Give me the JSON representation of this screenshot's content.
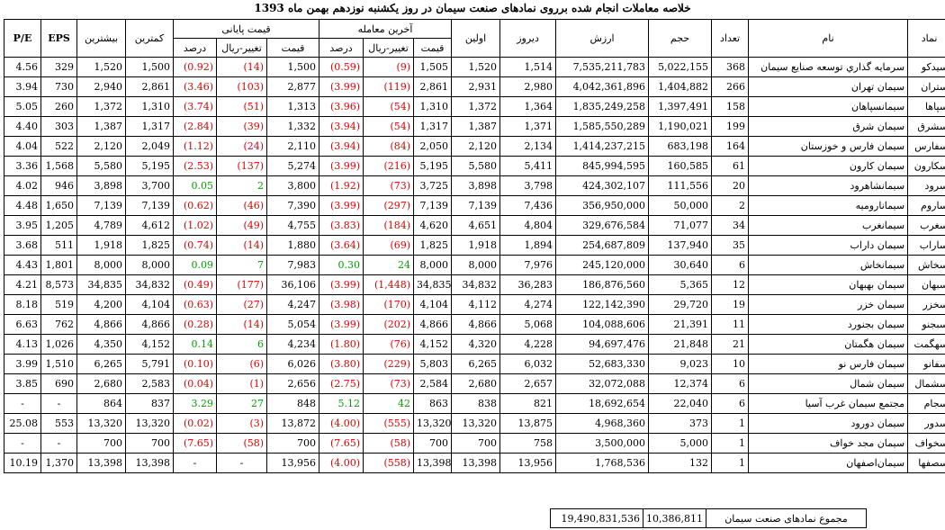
{
  "title": "خلاصه معاملات انجام شده برروی نمادهای صنعت سیمان در روز یکشنبه نوزدهم بهمن ماه 1393",
  "headers": {
    "namad": "نماد",
    "name": "نام",
    "count": "تعداد",
    "volume": "حجم",
    "value": "ارزش",
    "yesterday": "دیروز",
    "first": "اولین",
    "last_trade": "آخرین معامله",
    "closing": "قیمت پایانی",
    "price": "قیمت",
    "change": "تغییر-ریال",
    "percent": "درصد",
    "min": "کمترین",
    "max": "بیشترین",
    "eps": "EPS",
    "pe": "P/E"
  },
  "rows": [
    {
      "namad": "سیدکو",
      "name": "سرمايه گذاري توسعه صنايع سيمان",
      "count": "368",
      "volume": "5,022,155",
      "value": "7,535,211,783",
      "yesterday": "1,514",
      "first": "1,520",
      "lt_price": "1,505",
      "lt_change": "(9)",
      "lt_pct": "(0.59)",
      "lt_sign": "neg",
      "cl_price": "1,500",
      "cl_change": "(14)",
      "cl_pct": "(0.92)",
      "cl_sign": "neg",
      "min": "1,500",
      "max": "1,520",
      "eps": "329",
      "pe": "4.56"
    },
    {
      "namad": "ستران",
      "name": "سیمان تهران",
      "count": "266",
      "volume": "1,404,882",
      "value": "4,042,361,896",
      "yesterday": "2,980",
      "first": "2,931",
      "lt_price": "2,861",
      "lt_change": "(119)",
      "lt_pct": "(3.99)",
      "lt_sign": "neg",
      "cl_price": "2,877",
      "cl_change": "(103)",
      "cl_pct": "(3.46)",
      "cl_sign": "neg",
      "min": "2,861",
      "max": "2,940",
      "eps": "730",
      "pe": "3.94"
    },
    {
      "namad": "سپاها",
      "name": "سیمانسپاهان",
      "count": "158",
      "volume": "1,397,491",
      "value": "1,835,249,258",
      "yesterday": "1,364",
      "first": "1,372",
      "lt_price": "1,310",
      "lt_change": "(54)",
      "lt_pct": "(3.96)",
      "lt_sign": "neg",
      "cl_price": "1,313",
      "cl_change": "(51)",
      "cl_pct": "(3.74)",
      "cl_sign": "neg",
      "min": "1,310",
      "max": "1,372",
      "eps": "260",
      "pe": "5.05"
    },
    {
      "namad": "سشرق",
      "name": "سیمان شرق",
      "count": "199",
      "volume": "1,190,021",
      "value": "1,585,550,289",
      "yesterday": "1,371",
      "first": "1,387",
      "lt_price": "1,317",
      "lt_change": "(54)",
      "lt_pct": "(3.94)",
      "lt_sign": "neg",
      "cl_price": "1,332",
      "cl_change": "(39)",
      "cl_pct": "(2.84)",
      "cl_sign": "neg",
      "min": "1,317",
      "max": "1,387",
      "eps": "303",
      "pe": "4.40"
    },
    {
      "namad": "سفارس",
      "name": "سیمان فارس و خوزستان",
      "count": "164",
      "volume": "683,198",
      "value": "1,414,237,215",
      "yesterday": "2,134",
      "first": "2,120",
      "lt_price": "2,050",
      "lt_change": "(84)",
      "lt_pct": "(3.94)",
      "lt_sign": "neg",
      "cl_price": "2,110",
      "cl_change": "(24)",
      "cl_pct": "(1.12)",
      "cl_sign": "neg",
      "min": "2,049",
      "max": "2,120",
      "eps": "522",
      "pe": "4.04"
    },
    {
      "namad": "سکارون",
      "name": "سیمان کارون",
      "count": "61",
      "volume": "160,585",
      "value": "845,994,595",
      "yesterday": "5,411",
      "first": "5,580",
      "lt_price": "5,195",
      "lt_change": "(216)",
      "lt_pct": "(3.99)",
      "lt_sign": "neg",
      "cl_price": "5,274",
      "cl_change": "(137)",
      "cl_pct": "(2.53)",
      "cl_sign": "neg",
      "min": "5,195",
      "max": "5,580",
      "eps": "1,568",
      "pe": "3.36"
    },
    {
      "namad": "سرود",
      "name": "سیمانشاهرود",
      "count": "20",
      "volume": "111,556",
      "value": "424,302,107",
      "yesterday": "3,798",
      "first": "3,898",
      "lt_price": "3,725",
      "lt_change": "(73)",
      "lt_pct": "(1.92)",
      "lt_sign": "neg",
      "cl_price": "3,800",
      "cl_change": "2",
      "cl_pct": "0.05",
      "cl_sign": "pos",
      "min": "3,700",
      "max": "3,898",
      "eps": "946",
      "pe": "4.02"
    },
    {
      "namad": "ساروم",
      "name": "سیمانارومیه",
      "count": "2",
      "volume": "50,000",
      "value": "356,950,000",
      "yesterday": "7,436",
      "first": "7,139",
      "lt_price": "7,139",
      "lt_change": "(297)",
      "lt_pct": "(3.99)",
      "lt_sign": "neg",
      "cl_price": "7,390",
      "cl_change": "(46)",
      "cl_pct": "(0.62)",
      "cl_sign": "neg",
      "min": "7,139",
      "max": "7,139",
      "eps": "1,650",
      "pe": "4.48"
    },
    {
      "namad": "سغرب",
      "name": "سیمانغرب",
      "count": "34",
      "volume": "71,077",
      "value": "329,676,584",
      "yesterday": "4,804",
      "first": "4,651",
      "lt_price": "4,620",
      "lt_change": "(184)",
      "lt_pct": "(3.83)",
      "lt_sign": "neg",
      "cl_price": "4,755",
      "cl_change": "(49)",
      "cl_pct": "(1.02)",
      "cl_sign": "neg",
      "min": "4,612",
      "max": "4,789",
      "eps": "1,205",
      "pe": "3.95"
    },
    {
      "namad": "ساراب",
      "name": "سیمان داراب",
      "count": "35",
      "volume": "137,940",
      "value": "254,687,809",
      "yesterday": "1,894",
      "first": "1,918",
      "lt_price": "1,825",
      "lt_change": "(69)",
      "lt_pct": "(3.64)",
      "lt_sign": "neg",
      "cl_price": "1,880",
      "cl_change": "(14)",
      "cl_pct": "(0.74)",
      "cl_sign": "neg",
      "min": "1,825",
      "max": "1,918",
      "eps": "511",
      "pe": "3.68"
    },
    {
      "namad": "سخاش",
      "name": "سیمانخاش",
      "count": "6",
      "volume": "30,640",
      "value": "245,120,000",
      "yesterday": "7,976",
      "first": "8,000",
      "lt_price": "8,000",
      "lt_change": "24",
      "lt_pct": "0.30",
      "lt_sign": "pos",
      "cl_price": "7,983",
      "cl_change": "7",
      "cl_pct": "0.09",
      "cl_sign": "pos",
      "min": "8,000",
      "max": "8,000",
      "eps": "1,801",
      "pe": "4.43"
    },
    {
      "namad": "سبهان",
      "name": "سیمان بهبهان",
      "count": "12",
      "volume": "5,365",
      "value": "186,876,560",
      "yesterday": "36,283",
      "first": "34,832",
      "lt_price": "34,835",
      "lt_change": "(1,448)",
      "lt_pct": "(3.99)",
      "lt_sign": "neg",
      "cl_price": "36,106",
      "cl_change": "(177)",
      "cl_pct": "(0.49)",
      "cl_sign": "neg",
      "min": "34,832",
      "max": "34,835",
      "eps": "8,573",
      "pe": "4.21"
    },
    {
      "namad": "سخزر",
      "name": "سیمان خزر",
      "count": "19",
      "volume": "29,720",
      "value": "122,142,390",
      "yesterday": "4,274",
      "first": "4,112",
      "lt_price": "4,104",
      "lt_change": "(170)",
      "lt_pct": "(3.98)",
      "lt_sign": "neg",
      "cl_price": "4,247",
      "cl_change": "(27)",
      "cl_pct": "(0.63)",
      "cl_sign": "neg",
      "min": "4,104",
      "max": "4,200",
      "eps": "519",
      "pe": "8.18"
    },
    {
      "namad": "سبجنو",
      "name": "سیمان بجنورد",
      "count": "11",
      "volume": "21,391",
      "value": "104,088,606",
      "yesterday": "5,068",
      "first": "4,866",
      "lt_price": "4,866",
      "lt_change": "(202)",
      "lt_pct": "(3.99)",
      "lt_sign": "neg",
      "cl_price": "5,054",
      "cl_change": "(14)",
      "cl_pct": "(0.28)",
      "cl_sign": "neg",
      "min": "4,866",
      "max": "4,866",
      "eps": "762",
      "pe": "6.63"
    },
    {
      "namad": "سهگمت",
      "name": "سیمان هگمتان",
      "count": "21",
      "volume": "21,848",
      "value": "94,697,476",
      "yesterday": "4,228",
      "first": "4,320",
      "lt_price": "4,152",
      "lt_change": "(76)",
      "lt_pct": "(1.80)",
      "lt_sign": "neg",
      "cl_price": "4,234",
      "cl_change": "6",
      "cl_pct": "0.14",
      "cl_sign": "pos",
      "min": "4,152",
      "max": "4,350",
      "eps": "1,026",
      "pe": "4.13"
    },
    {
      "namad": "سفانو",
      "name": "سیمان فارس نو",
      "count": "10",
      "volume": "9,023",
      "value": "52,683,330",
      "yesterday": "6,032",
      "first": "6,265",
      "lt_price": "5,803",
      "lt_change": "(229)",
      "lt_pct": "(3.80)",
      "lt_sign": "neg",
      "cl_price": "6,026",
      "cl_change": "(6)",
      "cl_pct": "(0.10)",
      "cl_sign": "neg",
      "min": "5,791",
      "max": "6,265",
      "eps": "1,510",
      "pe": "3.99"
    },
    {
      "namad": "سشمال",
      "name": "سیمان شمال",
      "count": "6",
      "volume": "12,374",
      "value": "32,072,088",
      "yesterday": "2,657",
      "first": "2,680",
      "lt_price": "2,584",
      "lt_change": "(73)",
      "lt_pct": "(2.75)",
      "lt_sign": "neg",
      "cl_price": "2,656",
      "cl_change": "(1)",
      "cl_pct": "(0.04)",
      "cl_sign": "neg",
      "min": "2,583",
      "max": "2,680",
      "eps": "690",
      "pe": "3.85"
    },
    {
      "namad": "سجام",
      "name": "مجتمع سیمان غرب آسیا",
      "count": "6",
      "volume": "22,040",
      "value": "18,692,654",
      "yesterday": "821",
      "first": "838",
      "lt_price": "863",
      "lt_change": "42",
      "lt_pct": "5.12",
      "lt_sign": "pos",
      "cl_price": "848",
      "cl_change": "27",
      "cl_pct": "3.29",
      "cl_sign": "pos",
      "min": "837",
      "max": "864",
      "eps": "-",
      "pe": "-"
    },
    {
      "namad": "سدور",
      "name": "سیمان دورود",
      "count": "1",
      "volume": "373",
      "value": "4,968,360",
      "yesterday": "13,875",
      "first": "13,320",
      "lt_price": "13,320",
      "lt_change": "(555)",
      "lt_pct": "(4.00)",
      "lt_sign": "neg",
      "cl_price": "13,872",
      "cl_change": "(3)",
      "cl_pct": "(0.02)",
      "cl_sign": "neg",
      "min": "13,320",
      "max": "13,320",
      "eps": "553",
      "pe": "25.08"
    },
    {
      "namad": "سخواف",
      "name": "سیمان مجد خواف",
      "count": "1",
      "volume": "5,000",
      "value": "3,500,000",
      "yesterday": "758",
      "first": "700",
      "lt_price": "700",
      "lt_change": "(58)",
      "lt_pct": "(7.65)",
      "lt_sign": "neg",
      "cl_price": "700",
      "cl_change": "(58)",
      "cl_pct": "(7.65)",
      "cl_sign": "neg",
      "min": "700",
      "max": "700",
      "eps": "-",
      "pe": "-"
    },
    {
      "namad": "سصفها",
      "name": "سیمان‌اصفهان",
      "count": "1",
      "volume": "132",
      "value": "1,768,536",
      "yesterday": "13,956",
      "first": "13,398",
      "lt_price": "13,398",
      "lt_change": "(558)",
      "lt_pct": "(4.00)",
      "lt_sign": "neg",
      "cl_price": "13,956",
      "cl_change": "-",
      "cl_pct": "-",
      "cl_sign": "none",
      "min": "13,398",
      "max": "13,398",
      "eps": "1,370",
      "pe": "10.19"
    }
  ],
  "summary": {
    "label": "مجموع نمادهای صنعت سیمان",
    "volume": "10,386,811",
    "value": "19,490,831,536"
  }
}
